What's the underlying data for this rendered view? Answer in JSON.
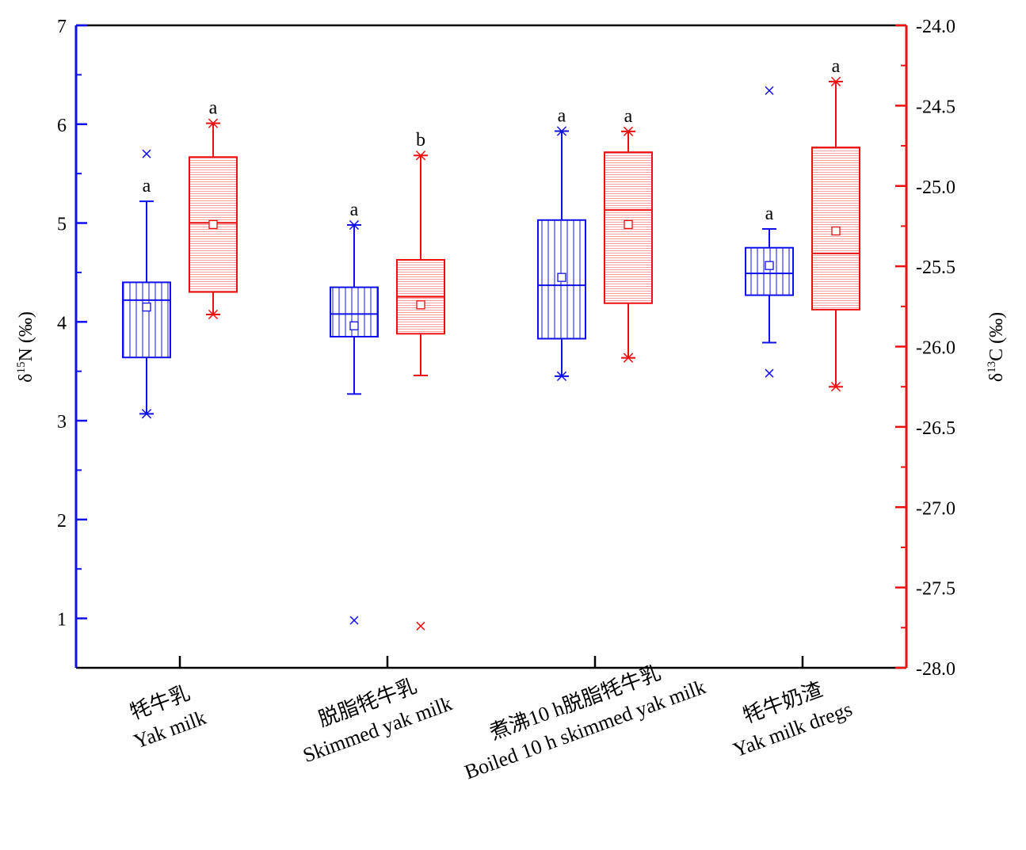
{
  "chart_data": {
    "type": "box",
    "left_axis": {
      "label_base": "δ",
      "label_sup": "15",
      "label_rest": "N (‰)",
      "ticks": [
        "1",
        "2",
        "3",
        "4",
        "5",
        "6",
        "7"
      ],
      "range": [
        0.5,
        7
      ],
      "color": "#1010ee"
    },
    "right_axis": {
      "label_base": "δ",
      "label_sup": "13",
      "label_rest": "C (‰)",
      "ticks": [
        "-28.0",
        "-27.5",
        "-27.0",
        "-26.5",
        "-26.0",
        "-25.5",
        "-25.0",
        "-24.5",
        "-24.0"
      ],
      "range": [
        -28.0,
        -24.0
      ],
      "color": "#ee1010"
    },
    "categories": [
      {
        "zh": "牦牛乳",
        "en": "Yak milk"
      },
      {
        "zh": "脱脂牦牛乳",
        "en": "Skimmed yak milk"
      },
      {
        "zh": "煮沸10 h脱脂牦牛乳",
        "en": "Boiled 10 h skimmed yak milk"
      },
      {
        "zh": "牦牛奶渣",
        "en": "Yak milk dregs"
      }
    ],
    "series": [
      {
        "axis": "left",
        "color": "#1010ee",
        "boxes": [
          {
            "whisker_low": 3.07,
            "q1": 3.64,
            "median": 4.22,
            "q3": 4.4,
            "whisker_high": 5.22,
            "mean": 4.15,
            "min_mark": 3.07,
            "max_mark": null,
            "outliers": [
              5.7
            ],
            "letter": "a"
          },
          {
            "whisker_low": 3.27,
            "q1": 3.85,
            "median": 4.08,
            "q3": 4.35,
            "whisker_high": 4.98,
            "mean": 3.96,
            "min_mark": null,
            "max_mark": 4.98,
            "outliers": [
              0.98
            ],
            "letter": "a"
          },
          {
            "whisker_low": 3.45,
            "q1": 3.83,
            "median": 4.37,
            "q3": 5.03,
            "whisker_high": 5.93,
            "mean": 4.45,
            "min_mark": 3.45,
            "max_mark": 5.93,
            "outliers": [],
            "letter": "a"
          },
          {
            "whisker_low": 3.79,
            "q1": 4.27,
            "median": 4.49,
            "q3": 4.75,
            "whisker_high": 4.94,
            "mean": 4.57,
            "min_mark": null,
            "max_mark": null,
            "outliers": [
              6.34,
              3.48
            ],
            "letter": "a"
          }
        ]
      },
      {
        "axis": "right",
        "color": "#ee1010",
        "boxes": [
          {
            "whisker_low": -25.8,
            "q1": -25.66,
            "median": -25.23,
            "q3": -24.82,
            "whisker_high": -24.61,
            "mean": -25.24,
            "min_mark": -25.8,
            "max_mark": -24.61,
            "outliers": [],
            "letter": "a"
          },
          {
            "whisker_low": -26.18,
            "q1": -25.92,
            "median": -25.69,
            "q3": -25.46,
            "whisker_high": -24.81,
            "mean": -25.74,
            "min_mark": null,
            "max_mark": -24.81,
            "outliers": [
              -27.74
            ],
            "letter": "b"
          },
          {
            "whisker_low": -26.07,
            "q1": -25.73,
            "median": -25.15,
            "q3": -24.79,
            "whisker_high": -24.66,
            "mean": -25.24,
            "min_mark": -26.07,
            "max_mark": -24.66,
            "outliers": [],
            "letter": "a"
          },
          {
            "whisker_low": -26.25,
            "q1": -25.77,
            "median": -25.42,
            "q3": -24.76,
            "whisker_high": -24.35,
            "mean": -25.28,
            "min_mark": -26.25,
            "max_mark": -24.35,
            "outliers": [],
            "letter": "a"
          }
        ]
      }
    ],
    "grid": false,
    "legend": "none"
  }
}
